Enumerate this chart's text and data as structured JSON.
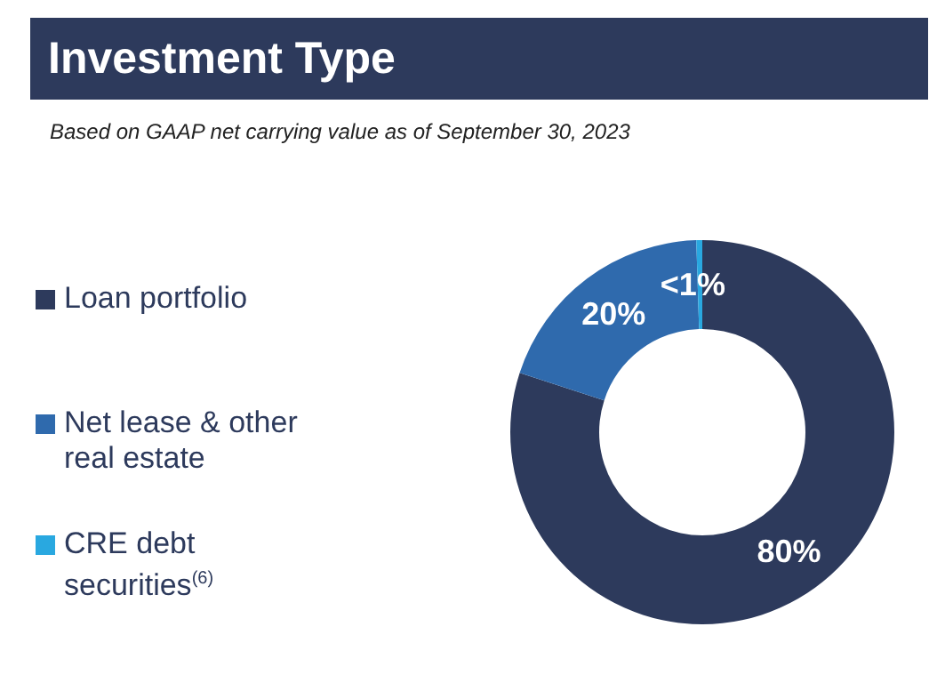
{
  "chart_data": {
    "type": "donut",
    "title": "Investment Type",
    "subtitle": "Based on GAAP net carrying value as of September 30, 2023",
    "categories": [
      "Loan portfolio",
      "Net lease & other real estate",
      "CRE debt securities$^{(6)}$"
    ],
    "values": [
      80,
      19.5,
      0.5
    ],
    "value_labels": [
      "80%",
      "20%",
      "<1%"
    ],
    "colors": [
      "#2d3a5c",
      "#2f6aad",
      "#29a8e0"
    ],
    "legend": "left"
  }
}
